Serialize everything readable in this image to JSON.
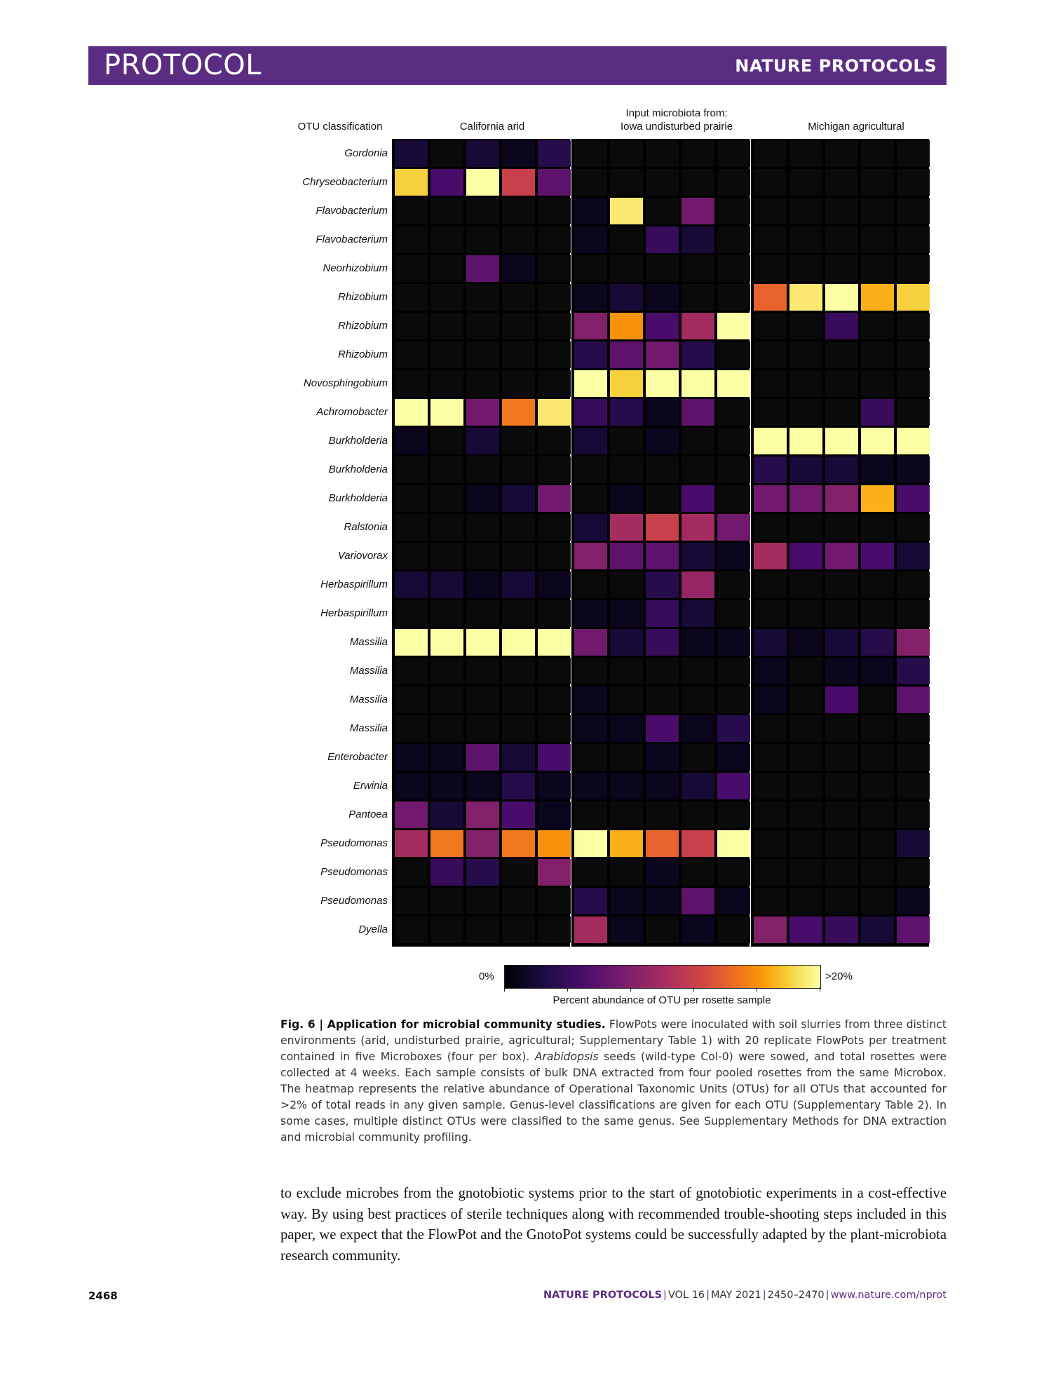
{
  "header": {
    "section": "PROTOCOL",
    "journal": "NATURE PROTOCOLS"
  },
  "figure": {
    "row_header": "OTU classification",
    "group_title_top": "Input microbiota from:",
    "groups": [
      "California arid",
      "Iowa undisturbed prairie",
      "Michigan agricultural"
    ],
    "colorbar": {
      "min_label": "0%",
      "max_label": ">20%",
      "title": "Percent abundance of OTU per rosette sample"
    }
  },
  "chart_data": {
    "type": "heatmap",
    "colormap": "inferno",
    "value_units": "percent abundance (0 to >20%)",
    "rows": [
      "Gordonia",
      "Chryseobacterium",
      "Flavobacterium",
      "Flavobacterium",
      "Neorhizobium",
      "Rhizobium",
      "Rhizobium",
      "Rhizobium",
      "Novosphingobium",
      "Achromobacter",
      "Burkholderia",
      "Burkholderia",
      "Burkholderia",
      "Ralstonia",
      "Variovorax",
      "Herbaspirillum",
      "Herbaspirillum",
      "Massilia",
      "Massilia",
      "Massilia",
      "Massilia",
      "Enterobacter",
      "Erwinia",
      "Pantoea",
      "Pseudomonas",
      "Pseudomonas",
      "Pseudomonas",
      "Dyella"
    ],
    "groups": [
      {
        "name": "California arid",
        "values": [
          [
            2,
            0,
            2,
            1,
            3
          ],
          [
            18,
            5,
            20,
            12,
            6
          ],
          [
            0,
            0,
            0,
            0,
            0
          ],
          [
            0,
            0,
            0,
            0,
            0
          ],
          [
            0,
            0,
            6,
            1,
            0
          ],
          [
            0,
            0,
            0,
            0,
            0
          ],
          [
            0,
            0,
            0,
            0,
            0
          ],
          [
            0,
            0,
            0,
            0,
            0
          ],
          [
            0,
            0,
            0,
            0,
            0
          ],
          [
            20,
            20,
            7,
            15,
            19
          ],
          [
            1,
            0,
            2,
            0,
            0
          ],
          [
            0,
            0,
            0,
            0,
            0
          ],
          [
            0,
            0,
            1,
            2,
            7
          ],
          [
            0,
            0,
            0,
            0,
            0
          ],
          [
            0,
            0,
            0,
            0,
            0
          ],
          [
            2,
            2,
            1,
            2,
            1
          ],
          [
            0,
            0,
            0,
            0,
            0
          ],
          [
            20,
            20,
            20,
            20,
            20
          ],
          [
            0,
            0,
            0,
            0,
            0
          ],
          [
            0,
            0,
            0,
            0,
            0
          ],
          [
            0,
            0,
            0,
            0,
            0
          ],
          [
            1,
            1,
            6,
            2,
            5
          ],
          [
            1,
            1,
            1,
            3,
            1
          ],
          [
            7,
            2,
            8,
            5,
            1
          ],
          [
            10,
            15,
            8,
            15,
            16
          ],
          [
            0,
            4,
            3,
            0,
            8
          ],
          [
            0,
            0,
            0,
            0,
            0
          ],
          [
            0,
            0,
            0,
            0,
            0
          ]
        ]
      },
      {
        "name": "Iowa undisturbed prairie",
        "values": [
          [
            0,
            0,
            0,
            0,
            0
          ],
          [
            0,
            0,
            0,
            0,
            0
          ],
          [
            1,
            19,
            0,
            7,
            0
          ],
          [
            1,
            0,
            4,
            2,
            0
          ],
          [
            0,
            0,
            0,
            0,
            0
          ],
          [
            1,
            2,
            1,
            0,
            0
          ],
          [
            8,
            16,
            5,
            10,
            20
          ],
          [
            3,
            6,
            7,
            3,
            0
          ],
          [
            20,
            18,
            20,
            20,
            20
          ],
          [
            4,
            3,
            1,
            6,
            0
          ],
          [
            2,
            0,
            1,
            0,
            0
          ],
          [
            0,
            0,
            0,
            0,
            0
          ],
          [
            0,
            1,
            0,
            5,
            0
          ],
          [
            2,
            10,
            12,
            10,
            7
          ],
          [
            8,
            6,
            6,
            2,
            1
          ],
          [
            0,
            0,
            3,
            9,
            0
          ],
          [
            1,
            1,
            4,
            2,
            0
          ],
          [
            7,
            2,
            4,
            1,
            1
          ],
          [
            0,
            0,
            0,
            0,
            0
          ],
          [
            1,
            0,
            0,
            0,
            0
          ],
          [
            1,
            1,
            5,
            1,
            3
          ],
          [
            0,
            0,
            1,
            0,
            1
          ],
          [
            1,
            1,
            1,
            2,
            5
          ],
          [
            0,
            0,
            0,
            0,
            0
          ],
          [
            20,
            17,
            14,
            12,
            20
          ],
          [
            0,
            0,
            1,
            0,
            0
          ],
          [
            3,
            1,
            1,
            6,
            1
          ],
          [
            10,
            1,
            0,
            1,
            0
          ]
        ]
      },
      {
        "name": "Michigan agricultural",
        "values": [
          [
            0,
            0,
            0,
            0,
            0
          ],
          [
            0,
            0,
            0,
            0,
            0
          ],
          [
            0,
            0,
            0,
            0,
            0
          ],
          [
            0,
            0,
            0,
            0,
            0
          ],
          [
            0,
            0,
            0,
            0,
            0
          ],
          [
            14,
            19,
            20,
            17,
            18
          ],
          [
            0,
            0,
            4,
            0,
            0
          ],
          [
            0,
            0,
            0,
            0,
            0
          ],
          [
            0,
            0,
            0,
            0,
            0
          ],
          [
            0,
            0,
            0,
            4,
            0
          ],
          [
            20,
            20,
            20,
            20,
            20
          ],
          [
            3,
            2,
            2,
            1,
            1
          ],
          [
            7,
            7,
            8,
            17,
            5
          ],
          [
            0,
            0,
            0,
            0,
            0
          ],
          [
            10,
            5,
            7,
            5,
            2
          ],
          [
            0,
            0,
            0,
            0,
            0
          ],
          [
            0,
            0,
            0,
            0,
            0
          ],
          [
            2,
            1,
            2,
            3,
            8
          ],
          [
            1,
            0,
            1,
            1,
            3
          ],
          [
            1,
            0,
            5,
            0,
            6
          ],
          [
            0,
            0,
            0,
            0,
            0
          ],
          [
            0,
            0,
            0,
            0,
            0
          ],
          [
            0,
            0,
            0,
            0,
            0
          ],
          [
            0,
            0,
            0,
            0,
            0
          ],
          [
            0,
            0,
            0,
            0,
            2
          ],
          [
            0,
            0,
            0,
            0,
            0
          ],
          [
            0,
            0,
            0,
            0,
            1
          ],
          [
            8,
            5,
            4,
            2,
            6
          ]
        ]
      }
    ]
  },
  "caption": {
    "label": "Fig. 6 | Application for microbial community studies.",
    "part1": " FlowPots were inoculated with soil slurries from three distinct environments (arid, undisturbed prairie, agricultural; Supplementary Table 1) with 20 replicate FlowPots per treatment contained in five Microboxes (four per box). ",
    "italic": "Arabidopsis",
    "part2": " seeds (wild-type Col-0) were sowed, and total rosettes were collected at 4 weeks. Each sample consists of bulk DNA extracted from four pooled rosettes from the same Microbox. The heatmap represents the relative abundance of Operational Taxonomic Units (OTUs) for all OTUs that accounted for >2% of total reads in any given sample. Genus-level classifications are given for each OTU (Supplementary Table 2). In some cases, multiple distinct OTUs were classified to the same genus. See Supplementary Methods for DNA extraction and microbial community profiling."
  },
  "body_text": "to exclude microbes from the gnotobiotic systems prior to the start of gnotobiotic experiments in a cost-effective way. By using best practices of sterile techniques along with recommended trouble-shooting steps included in this paper, we expect that the FlowPot and the GnotoPot systems could be successfully adapted by the plant-microbiota research community.",
  "footer": {
    "page": "2468",
    "journal": "NATURE PROTOCOLS",
    "volume": "VOL 16",
    "date": "MAY 2021",
    "pages": "2450–2470",
    "url": "www.nature.com/nprot"
  }
}
